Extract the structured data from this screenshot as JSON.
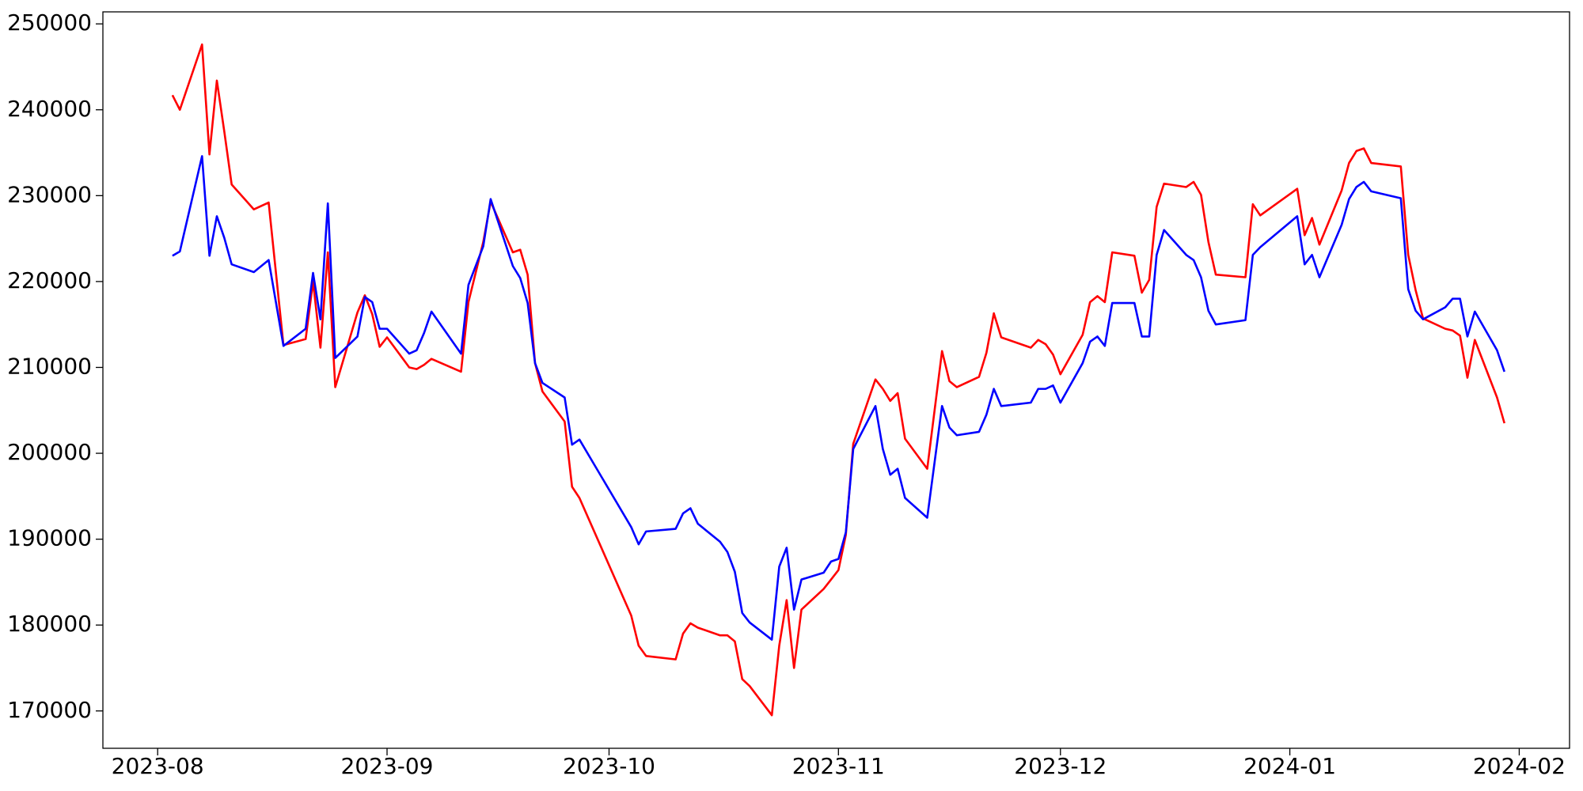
{
  "chart_data": {
    "type": "line",
    "x": [
      2,
      3,
      6,
      7,
      8,
      9,
      10,
      13,
      15,
      17,
      20,
      21,
      22,
      23,
      24,
      27,
      28,
      29,
      30,
      31,
      34,
      35,
      36,
      37,
      41,
      42,
      44,
      45,
      48,
      49,
      50,
      51,
      52,
      55,
      56,
      57,
      64,
      65,
      66,
      70,
      71,
      72,
      73,
      76,
      77,
      78,
      79,
      80,
      83,
      84,
      85,
      86,
      87,
      90,
      91,
      92,
      93,
      94,
      97,
      98,
      99,
      100,
      101,
      104,
      106,
      107,
      108,
      111,
      112,
      113,
      114,
      118,
      119,
      120,
      121,
      122,
      125,
      126,
      127,
      128,
      129,
      132,
      133,
      134,
      135,
      136,
      139,
      140,
      141,
      142,
      143,
      147,
      148,
      149,
      154,
      155,
      156,
      157,
      160,
      161,
      162,
      163,
      164,
      168,
      169,
      170,
      171,
      174,
      175,
      176,
      177,
      178,
      181,
      182
    ],
    "series": [
      {
        "color": "#ff0000",
        "values": [
          241700,
          240000,
          247600,
          234800,
          243400,
          237500,
          231300,
          228400,
          229200,
          212600,
          213300,
          220000,
          212300,
          223400,
          207700,
          216400,
          218400,
          216200,
          212400,
          213500,
          210000,
          209800,
          210300,
          211000,
          209500,
          217600,
          224600,
          229300,
          223400,
          223700,
          220800,
          210500,
          207200,
          203700,
          196100,
          194800,
          181100,
          177600,
          176400,
          176000,
          179000,
          180200,
          179700,
          178800,
          178800,
          178100,
          173700,
          172900,
          169500,
          177600,
          182900,
          175000,
          181800,
          184200,
          185300,
          186400,
          190500,
          201100,
          208600,
          207500,
          206100,
          207000,
          201700,
          198200,
          211900,
          208400,
          207700,
          208900,
          211700,
          216300,
          213500,
          212300,
          213200,
          212700,
          211500,
          209200,
          213800,
          217600,
          218300,
          217600,
          223400,
          223000,
          218700,
          220200,
          228700,
          231400,
          231000,
          231600,
          230100,
          224600,
          220800,
          220500,
          229000,
          227700,
          230800,
          225400,
          227400,
          224300,
          230600,
          233800,
          235200,
          235500,
          233800,
          233400,
          223100,
          219000,
          215700,
          214500,
          214300,
          213700,
          208800,
          213200,
          206500,
          203500
        ]
      },
      {
        "color": "#0000ff",
        "values": [
          223000,
          223500,
          234600,
          223000,
          227600,
          225100,
          222000,
          221100,
          222500,
          212500,
          214500,
          221000,
          215600,
          229100,
          211100,
          213600,
          218200,
          217600,
          214500,
          214500,
          211600,
          212000,
          214000,
          216500,
          211600,
          219600,
          224100,
          229600,
          221800,
          220400,
          217500,
          210500,
          208200,
          206500,
          201000,
          201600,
          191400,
          189400,
          190900,
          191200,
          193000,
          193600,
          191800,
          189700,
          188500,
          186200,
          181400,
          180300,
          178300,
          186800,
          189000,
          181800,
          185300,
          186100,
          187400,
          187700,
          190800,
          200500,
          205500,
          200500,
          197500,
          198200,
          194800,
          192500,
          205500,
          203000,
          202100,
          202500,
          204500,
          207500,
          205500,
          205900,
          207500,
          207500,
          207900,
          205900,
          210500,
          213000,
          213600,
          212500,
          217500,
          217500,
          213600,
          213600,
          223100,
          226000,
          223100,
          222500,
          220500,
          216600,
          215000,
          215500,
          223100,
          224000,
          227600,
          222000,
          223100,
          220500,
          226600,
          229600,
          231000,
          231600,
          230500,
          229700,
          219100,
          216600,
          215600,
          217000,
          218000,
          218000,
          213600,
          216500,
          212000,
          209500
        ]
      }
    ],
    "xlim": [
      -7.4,
      190.8
    ],
    "xticks": [
      {
        "value": 0,
        "label": "2023-08"
      },
      {
        "value": 31,
        "label": "2023-09"
      },
      {
        "value": 61,
        "label": "2023-10"
      },
      {
        "value": 92,
        "label": "2023-11"
      },
      {
        "value": 122,
        "label": "2023-12"
      },
      {
        "value": 153,
        "label": "2024-01"
      },
      {
        "value": 184,
        "label": "2024-02"
      }
    ],
    "ylim": [
      165650,
      251400
    ],
    "yticks": [
      170000,
      180000,
      190000,
      200000,
      210000,
      220000,
      230000,
      240000,
      250000
    ]
  }
}
